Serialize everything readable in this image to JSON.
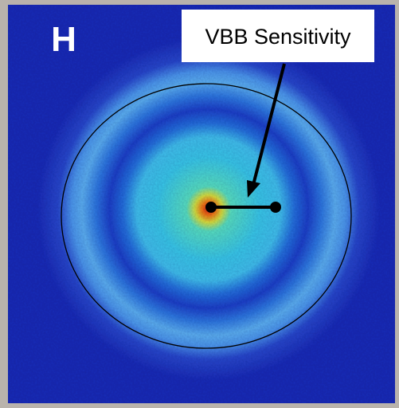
{
  "panel_label": "H",
  "annotation": "VBB Sensitivity"
}
